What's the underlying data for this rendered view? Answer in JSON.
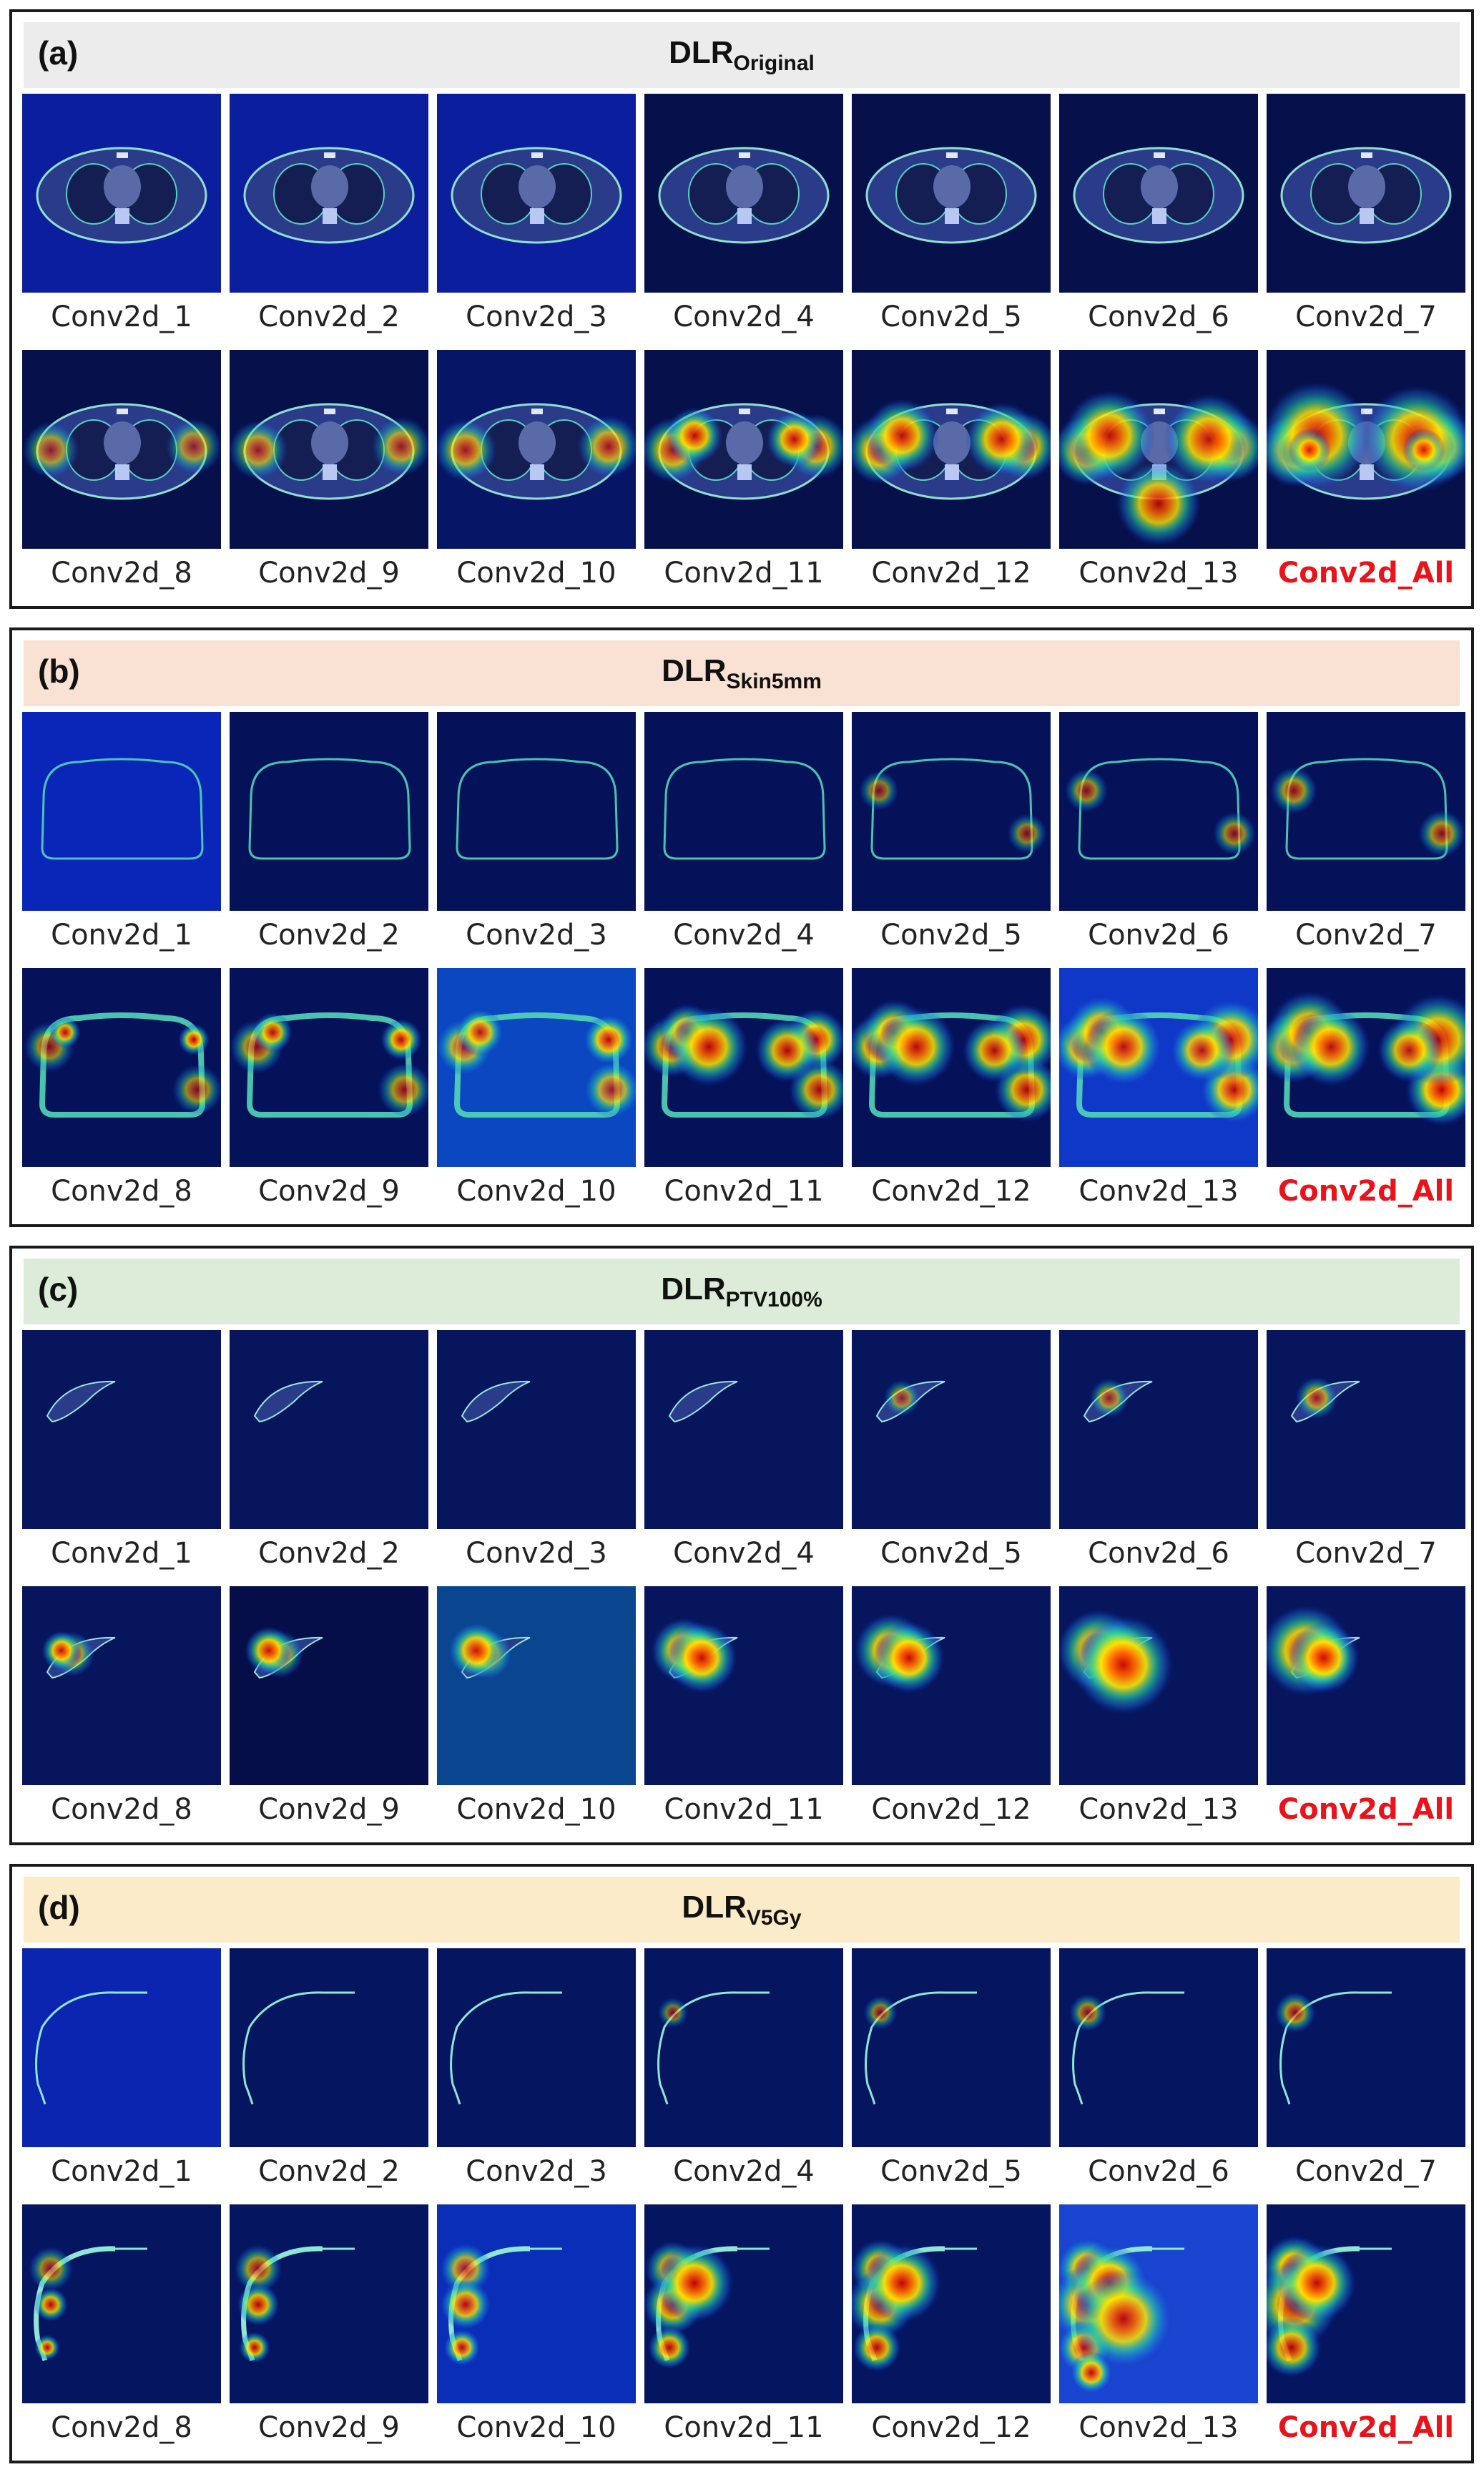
{
  "panels": [
    {
      "label": "(a)",
      "title_main": "DLR",
      "title_sub": "Original",
      "header_color": "#ececec",
      "kind": "ct",
      "rows": [
        [
          "Conv2d_1",
          "Conv2d_2",
          "Conv2d_3",
          "Conv2d_4",
          "Conv2d_5",
          "Conv2d_6",
          "Conv2d_7"
        ],
        [
          "Conv2d_8",
          "Conv2d_9",
          "Conv2d_10",
          "Conv2d_11",
          "Conv2d_12",
          "Conv2d_13",
          "Conv2d_All"
        ]
      ]
    },
    {
      "label": "(b)",
      "title_main": "DLR",
      "title_sub": "Skin5mm",
      "header_color": "#f9e1d3",
      "kind": "skin",
      "rows": [
        [
          "Conv2d_1",
          "Conv2d_2",
          "Conv2d_3",
          "Conv2d_4",
          "Conv2d_5",
          "Conv2d_6",
          "Conv2d_7"
        ],
        [
          "Conv2d_8",
          "Conv2d_9",
          "Conv2d_10",
          "Conv2d_11",
          "Conv2d_12",
          "Conv2d_13",
          "Conv2d_All"
        ]
      ]
    },
    {
      "label": "(c)",
      "title_main": "DLR",
      "title_sub": "PTV100%",
      "header_color": "#dcecd8",
      "kind": "ptv",
      "rows": [
        [
          "Conv2d_1",
          "Conv2d_2",
          "Conv2d_3",
          "Conv2d_4",
          "Conv2d_5",
          "Conv2d_6",
          "Conv2d_7"
        ],
        [
          "Conv2d_8",
          "Conv2d_9",
          "Conv2d_10",
          "Conv2d_11",
          "Conv2d_12",
          "Conv2d_13",
          "Conv2d_All"
        ]
      ]
    },
    {
      "label": "(d)",
      "title_main": "DLR",
      "title_sub": "V5Gy",
      "header_color": "#fcebc8",
      "kind": "v5",
      "rows": [
        [
          "Conv2d_1",
          "Conv2d_2",
          "Conv2d_3",
          "Conv2d_4",
          "Conv2d_5",
          "Conv2d_6",
          "Conv2d_7"
        ],
        [
          "Conv2d_8",
          "Conv2d_9",
          "Conv2d_10",
          "Conv2d_11",
          "Conv2d_12",
          "Conv2d_13",
          "Conv2d_All"
        ]
      ]
    }
  ],
  "highlight_label": "Conv2d_All",
  "highlight_color": "#e8131b"
}
